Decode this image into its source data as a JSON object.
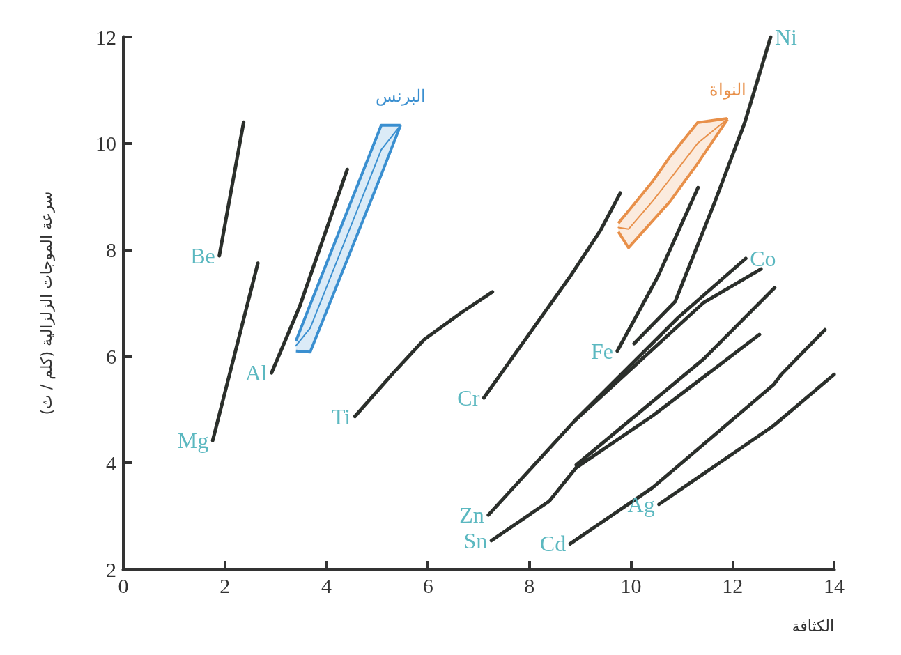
{
  "chart_data": {
    "type": "line",
    "xlabel": "الكثافة",
    "ylabel": "سرعة الموجات الزلزالية (كلم / ث)",
    "xlim": [
      0,
      14
    ],
    "ylim": [
      2,
      12
    ],
    "xticks": [
      0,
      2,
      4,
      6,
      8,
      10,
      12,
      14
    ],
    "yticks": [
      2,
      4,
      6,
      8,
      10,
      12
    ],
    "grid": false,
    "legend": false,
    "marker": "none",
    "line_style": "solid",
    "series": [
      {
        "name": "Be",
        "color": "#2b2f2b",
        "x": [
          1.89,
          2.37
        ],
        "values": [
          7.89,
          10.4
        ]
      },
      {
        "name": "Mg",
        "color": "#2b2f2b",
        "x": [
          1.76,
          2.65
        ],
        "values": [
          4.42,
          7.75
        ]
      },
      {
        "name": "Al",
        "color": "#2b2f2b",
        "x": [
          2.92,
          3.47,
          4.41
        ],
        "values": [
          5.69,
          6.93,
          9.51
        ]
      },
      {
        "name": "البرنس",
        "color": "#3a8fd0",
        "x": [
          3.4,
          3.68,
          5.08,
          5.46
        ],
        "values": [
          6.2,
          6.53,
          9.88,
          10.34
        ],
        "lower": [
          6.1,
          6.08,
          9.41,
          10.34
        ],
        "upper": [
          6.29,
          6.97,
          10.34,
          10.34
        ]
      },
      {
        "name": "Ti",
        "color": "#2b2f2b",
        "x": [
          4.56,
          5.3,
          5.93,
          6.67,
          7.27
        ],
        "values": [
          4.87,
          5.67,
          6.32,
          6.83,
          7.21
        ]
      },
      {
        "name": "Cr",
        "color": "#2b2f2b",
        "x": [
          7.1,
          8.8,
          9.4,
          9.79
        ],
        "values": [
          5.22,
          7.5,
          8.37,
          9.07
        ]
      },
      {
        "name": "النواة",
        "color": "#e8904a",
        "x": [
          9.75,
          9.95,
          10.42,
          10.76,
          11.31,
          11.9
        ],
        "values": [
          8.42,
          8.39,
          8.91,
          9.32,
          10.0,
          10.46
        ],
        "lower": [
          8.34,
          8.04,
          8.54,
          8.9,
          9.62,
          10.45
        ],
        "upper": [
          8.5,
          8.73,
          9.28,
          9.74,
          10.39,
          10.47
        ]
      },
      {
        "name": "Fe",
        "color": "#2b2f2b",
        "x": [
          9.73,
          10.53,
          11.32
        ],
        "values": [
          6.1,
          7.5,
          9.17
        ]
      },
      {
        "name": "Ni",
        "color": "#2b2f2b",
        "x": [
          12.75,
          12.24,
          11.65,
          10.87,
          10.06
        ],
        "values": [
          12.0,
          10.39,
          8.9,
          7.03,
          6.24
        ]
      },
      {
        "name": "Co",
        "color": "#2b2f2b",
        "x": [
          12.26,
          10.93,
          8.89
        ],
        "values": [
          7.84,
          6.73,
          4.79
        ]
      },
      {
        "name": "Zn",
        "color": "#2b2f2b",
        "x": [
          7.19,
          8.89,
          11.43,
          12.56
        ],
        "values": [
          3.02,
          4.79,
          7.01,
          7.64
        ]
      },
      {
        "color": "#2b2f2b",
        "x": [
          8.92,
          11.43,
          12.83
        ],
        "values": [
          3.96,
          5.95,
          7.29
        ]
      },
      {
        "name": "Sn",
        "color": "#2b2f2b",
        "x": [
          7.25,
          8.39,
          8.92,
          10.42,
          12.53
        ],
        "values": [
          2.54,
          3.28,
          3.91,
          4.88,
          6.41
        ]
      },
      {
        "name": "Cd",
        "color": "#2b2f2b",
        "x": [
          8.8,
          10.42,
          12.81,
          12.96,
          13.82
        ],
        "values": [
          2.48,
          3.53,
          5.47,
          5.66,
          6.5
        ]
      },
      {
        "name": "Ag",
        "color": "#2b2f2b",
        "x": [
          10.55,
          12.81,
          14.0
        ],
        "values": [
          3.22,
          4.7,
          5.66
        ]
      }
    ]
  }
}
